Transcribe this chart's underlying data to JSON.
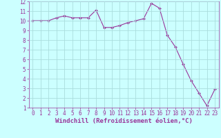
{
  "x": [
    0,
    1,
    2,
    3,
    4,
    5,
    6,
    7,
    8,
    9,
    10,
    11,
    12,
    13,
    14,
    15,
    16,
    17,
    18,
    19,
    20,
    21,
    22,
    23
  ],
  "y": [
    10.0,
    10.0,
    10.0,
    10.3,
    10.5,
    10.3,
    10.3,
    10.3,
    11.1,
    9.3,
    9.3,
    9.5,
    9.8,
    10.0,
    10.2,
    11.8,
    11.3,
    8.5,
    7.3,
    5.5,
    3.8,
    2.5,
    1.2,
    2.9
  ],
  "line_color": "#993399",
  "marker": "D",
  "marker_size": 2.0,
  "bg_color": "#ccffff",
  "grid_color": "#aadddd",
  "xlabel": "Windchill (Refroidissement éolien,°C)",
  "xlim": [
    -0.5,
    23.5
  ],
  "ylim": [
    1,
    12
  ],
  "yticks": [
    1,
    2,
    3,
    4,
    5,
    6,
    7,
    8,
    9,
    10,
    11,
    12
  ],
  "xticks": [
    0,
    1,
    2,
    3,
    4,
    5,
    6,
    7,
    8,
    9,
    10,
    11,
    12,
    13,
    14,
    15,
    16,
    17,
    18,
    19,
    20,
    21,
    22,
    23
  ],
  "xlabel_color": "#993399",
  "tick_color": "#993399",
  "axis_label_fontsize": 6.5,
  "tick_fontsize": 5.5
}
